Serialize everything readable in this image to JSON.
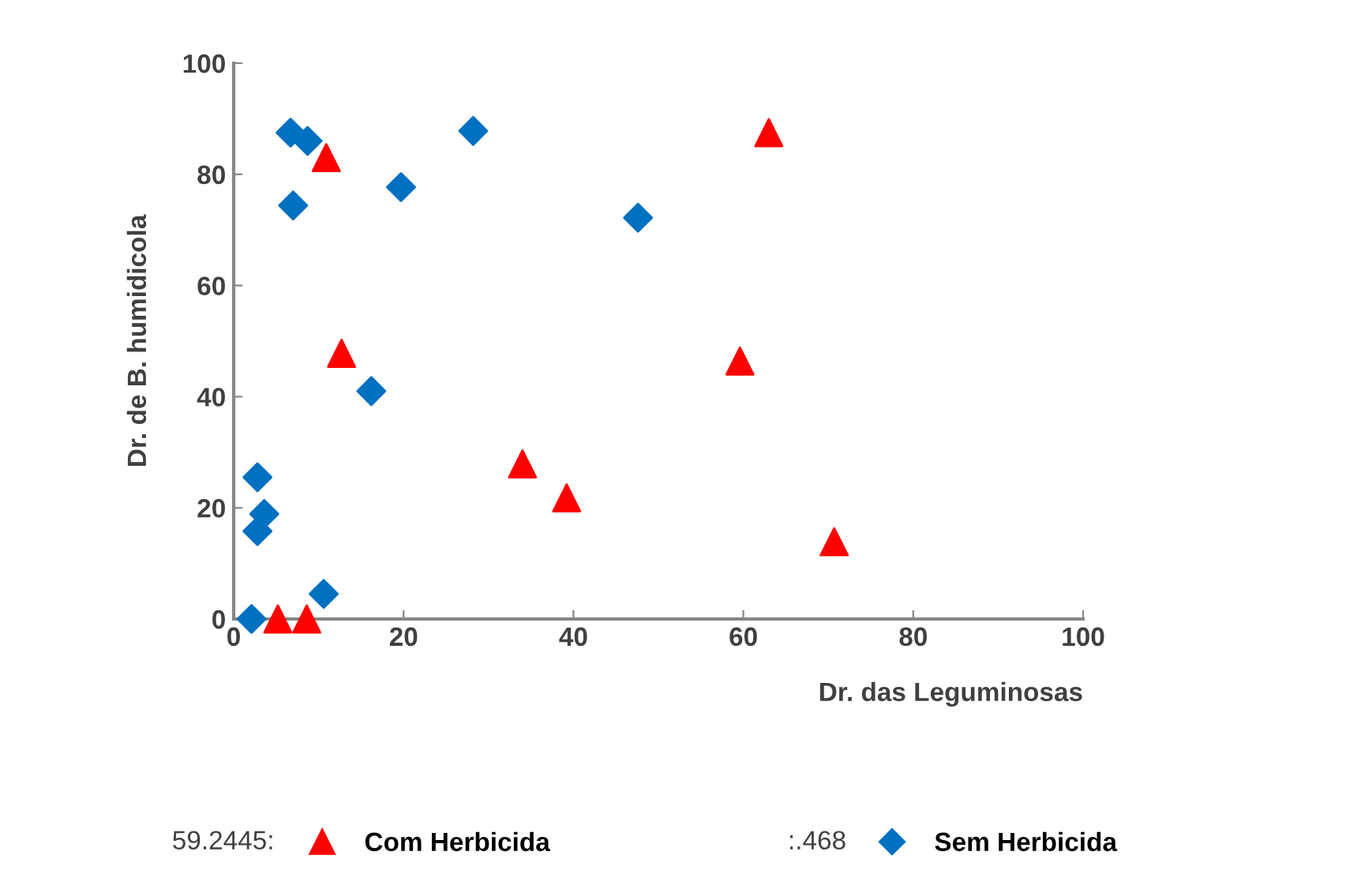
{
  "chart_data": {
    "type": "scatter",
    "xlabel": "Dr. das Leguminosas",
    "ylabel": "Dr. de B. humidicola",
    "xlim": [
      0,
      100
    ],
    "ylim": [
      0,
      100
    ],
    "xticks": [
      0,
      20,
      40,
      60,
      80,
      100
    ],
    "yticks": [
      0,
      20,
      40,
      60,
      80,
      100
    ],
    "grid": false,
    "legend": "bottom",
    "annotations": [
      "59.2445:",
      ":.468"
    ],
    "series": [
      {
        "name": "Com Herbicida",
        "color": "#ff0000",
        "marker": "triangle",
        "x": [
          5.2,
          8.6,
          10.9,
          12.7,
          34,
          39.2,
          59.6,
          63,
          70.7
        ],
        "values": [
          0,
          0,
          83,
          47.8,
          27.9,
          21.8,
          46.4,
          87.5,
          13.9
        ]
      },
      {
        "name": "Sem Herbicida",
        "color": "#0070c0",
        "marker": "diamond",
        "x": [
          2.1,
          10.6,
          2.8,
          3.6,
          2.8,
          16.2,
          7.0,
          6.7,
          8.7,
          19.7,
          28.2,
          47.6
        ],
        "values": [
          0,
          4.5,
          15.8,
          18.9,
          25.5,
          41,
          74.4,
          87.5,
          86,
          77.7,
          87.8,
          72.2
        ]
      }
    ]
  }
}
